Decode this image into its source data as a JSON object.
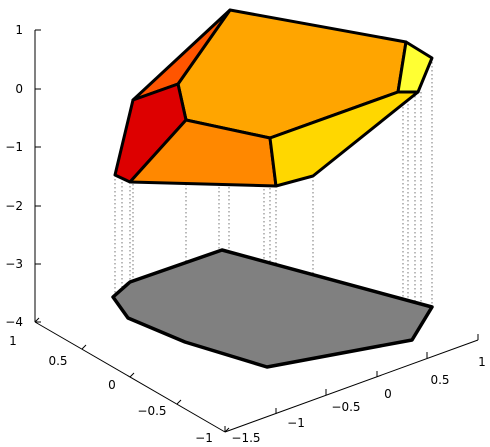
{
  "chart_data": {
    "type": "3d-polyhedron-projection",
    "title": "",
    "axes": {
      "x_ticks": [
        "1",
        "0.5",
        "0",
        "−0.5",
        "−1"
      ],
      "y_ticks": [
        "−1.5",
        "−1",
        "−0.5",
        "0",
        "0.5",
        "1"
      ],
      "z_ticks": [
        "1",
        "0",
        "−1",
        "−2",
        "−3",
        "−4"
      ],
      "z_range": [
        -4,
        1
      ]
    },
    "grid": false,
    "polyhedron_faces": [
      {
        "name": "top",
        "color": "#FFA500"
      },
      {
        "name": "upper-left",
        "color": "#FF5500"
      },
      {
        "name": "left",
        "color": "#DD0000"
      },
      {
        "name": "front",
        "color": "#FF8800"
      },
      {
        "name": "right-front",
        "color": "#FFD700"
      },
      {
        "name": "right-tip",
        "color": "#FFFF33"
      }
    ],
    "projection": {
      "z_level": -4,
      "fill": "#808080",
      "edge": "#000000"
    }
  }
}
